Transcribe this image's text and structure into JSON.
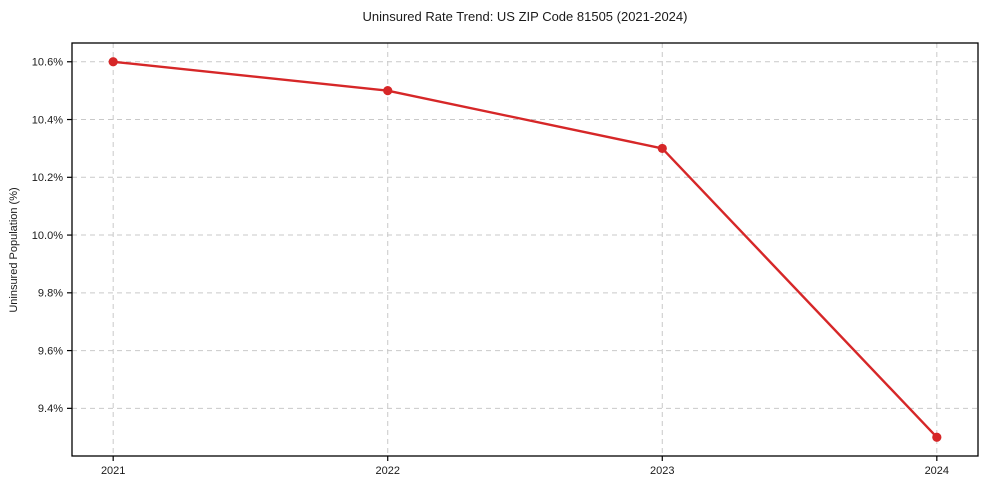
{
  "chart_data": {
    "type": "line",
    "title": "Uninsured Rate Trend: US ZIP Code 81505 (2021-2024)",
    "xlabel": "",
    "ylabel": "Uninsured Population (%)",
    "x": [
      2021,
      2022,
      2023,
      2024
    ],
    "values": [
      10.6,
      10.5,
      10.3,
      9.3
    ],
    "xticks": [
      2021,
      2022,
      2023,
      2024
    ],
    "xtick_labels": [
      "2021",
      "2022",
      "2023",
      "2024"
    ],
    "yticks": [
      9.4,
      9.6,
      9.8,
      10.0,
      10.2,
      10.4,
      10.6
    ],
    "ytick_labels": [
      "9.4%",
      "9.6%",
      "9.8%",
      "10.0%",
      "10.2%",
      "10.4%",
      "10.6%"
    ],
    "xlim": [
      2020.85,
      2024.15
    ],
    "ylim": [
      9.235,
      10.665
    ],
    "grid": true,
    "legend_position": "none",
    "line_color": "#d62728",
    "marker": "circle",
    "marker_color": "#d62728",
    "grid_color": "#c9c9c9",
    "spine_color": "#000000",
    "tick_text_color": "#1a1a1a",
    "background_color": "#ffffff"
  }
}
